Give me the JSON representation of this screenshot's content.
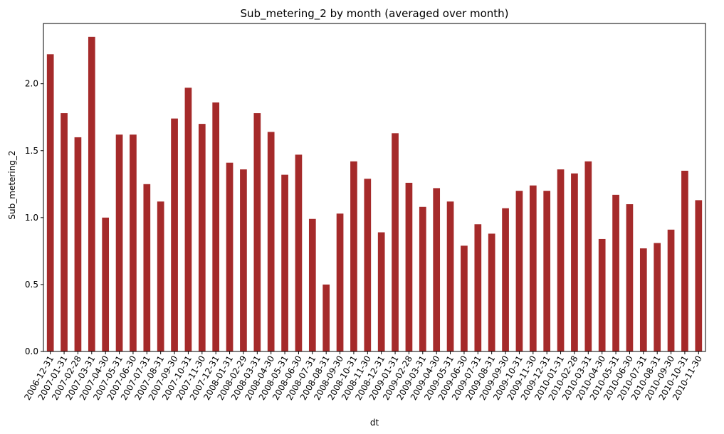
{
  "chart_data": {
    "type": "bar",
    "title": "Sub_metering_2 by month (averaged over month)",
    "xlabel": "dt",
    "ylabel": "Sub_metering_2",
    "ylim": [
      0,
      2.45
    ],
    "yticks": [
      0.0,
      0.5,
      1.0,
      1.5,
      2.0
    ],
    "grid": false,
    "bar_color": "#a52a2a",
    "categories": [
      "2006-12-31",
      "2007-01-31",
      "2007-02-28",
      "2007-03-31",
      "2007-04-30",
      "2007-05-31",
      "2007-06-30",
      "2007-07-31",
      "2007-08-31",
      "2007-09-30",
      "2007-10-31",
      "2007-11-30",
      "2007-12-31",
      "2008-01-31",
      "2008-02-29",
      "2008-03-31",
      "2008-04-30",
      "2008-05-31",
      "2008-06-30",
      "2008-07-31",
      "2008-08-31",
      "2008-09-30",
      "2008-10-31",
      "2008-11-30",
      "2008-12-31",
      "2009-01-31",
      "2009-02-28",
      "2009-03-31",
      "2009-04-30",
      "2009-05-31",
      "2009-06-30",
      "2009-07-31",
      "2009-08-31",
      "2009-09-30",
      "2009-10-31",
      "2009-11-30",
      "2009-12-31",
      "2010-01-31",
      "2010-02-28",
      "2010-03-31",
      "2010-04-30",
      "2010-05-31",
      "2010-06-30",
      "2010-07-31",
      "2010-08-31",
      "2010-09-30",
      "2010-10-31",
      "2010-11-30"
    ],
    "values": [
      2.22,
      1.78,
      1.6,
      2.35,
      1.0,
      1.62,
      1.62,
      1.25,
      1.12,
      1.74,
      1.97,
      1.7,
      1.86,
      1.41,
      1.36,
      1.78,
      1.64,
      1.32,
      1.47,
      0.99,
      0.5,
      1.03,
      1.42,
      1.29,
      0.89,
      1.63,
      1.26,
      1.08,
      1.22,
      1.12,
      0.79,
      0.95,
      0.88,
      1.07,
      1.2,
      1.24,
      1.2,
      1.36,
      1.33,
      1.42,
      0.84,
      1.17,
      1.1,
      0.77,
      0.81,
      0.91,
      1.35,
      1.13
    ]
  }
}
